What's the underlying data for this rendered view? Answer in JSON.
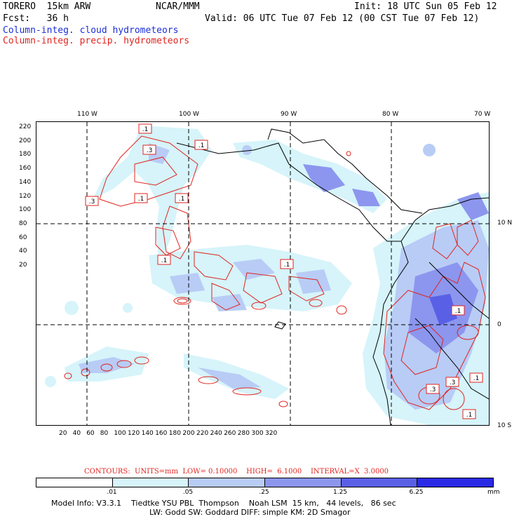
{
  "header": {
    "model": "TORERO  15km ARW",
    "org": "NCAR/MMM",
    "init": "Init: 18 UTC Sun 05 Feb 12",
    "fcst": "Fcst:   36 h",
    "valid": "Valid: 06 UTC Tue 07 Feb 12 (00 CST Tue 07 Feb 12)",
    "field1": "Column-integ. cloud hydrometeors",
    "field2": "Column-integ. precip. hydrometeors"
  },
  "colors": {
    "cloud_title": "#1c2fd6",
    "precip_title": "#e0241f",
    "precip_contour": "#e0241f"
  },
  "map": {
    "lon_labels": [
      "110 W",
      "100 W",
      "90 W",
      "80 W",
      "70 W"
    ],
    "lat_labels": [
      "10 N",
      "0",
      "10 S"
    ],
    "y_ticks": [
      "220",
      "200",
      "180",
      "160",
      "140",
      "120",
      "100",
      "80",
      "60",
      "40",
      "20"
    ],
    "x_ticks": [
      "20",
      "40",
      "60",
      "80",
      "100",
      "120",
      "140",
      "160",
      "180",
      "200",
      "220",
      "240",
      "260",
      "280",
      "300",
      "320"
    ],
    "contour_labels": [
      ".1",
      ".3",
      ".1",
      ".3",
      ".1",
      ".1",
      ".1",
      ".1",
      ".1",
      ".3",
      ".3",
      ".1",
      ".1"
    ]
  },
  "contour_info": {
    "label": "CONTOURS:",
    "units": "UNITS=mm",
    "low": "LOW= 0.10000",
    "high": "HIGH=  6.1000",
    "interval": "INTERVAL=X  3.0000"
  },
  "legend": {
    "unit": "mm",
    "levels": [
      ".01",
      ".05",
      ".25",
      "1.25",
      "6.25"
    ],
    "colors": [
      "#ffffff",
      "#d6f4fa",
      "#b8ccf6",
      "#8c96ee",
      "#5a60e6",
      "#2a2ae6"
    ]
  },
  "footer": {
    "line1": "Model Info: V3.3.1    Tiedtke YSU PBL  Thompson    Noah LSM  15 km,   44 levels,   86 sec",
    "line2": "LW: Godd SW: Goddard DIFF: simple KM: 2D Smagor"
  }
}
